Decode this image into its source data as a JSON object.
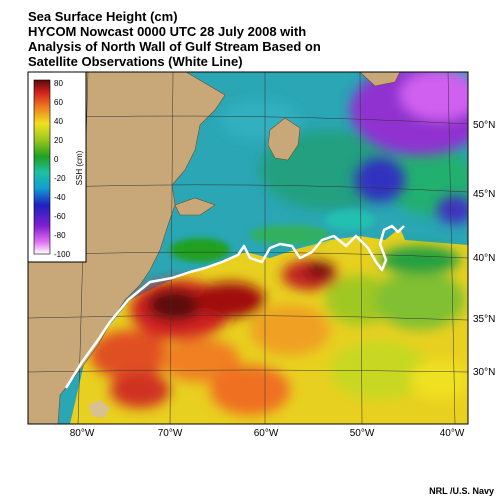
{
  "title": {
    "line1": "Sea Surface Height (cm)",
    "line2": "HYCOM Nowcast 0000  UTC 28 July 2008 with",
    "line3": "Analysis of North Wall of Gulf Stream Based on",
    "line4": "Satellite Observations (White Line)"
  },
  "legend": {
    "label": "SSH (cm)",
    "ticks": [
      "80",
      "60",
      "40",
      "20",
      "0",
      "-20",
      "-40",
      "-60",
      "-80",
      "-100"
    ],
    "colors": [
      "#ffffff",
      "#e070f0",
      "#8020d0",
      "#2020c0",
      "#10a0d0",
      "#20c0a0",
      "#20a020",
      "#a0c820",
      "#f0e020",
      "#f08020",
      "#d02020",
      "#5a0a0a"
    ]
  },
  "axes": {
    "lon_labels": [
      "80°W",
      "70°W",
      "60°W",
      "50°W",
      "40°W"
    ],
    "lat_labels": [
      "50°N",
      "45°N",
      "40°N",
      "35°N",
      "30°N"
    ]
  },
  "colors": {
    "land": "#c8a878",
    "gulf_stream_line": "#ffffff",
    "frame": "#000000"
  },
  "credit": "NRL /U.S. Navy"
}
